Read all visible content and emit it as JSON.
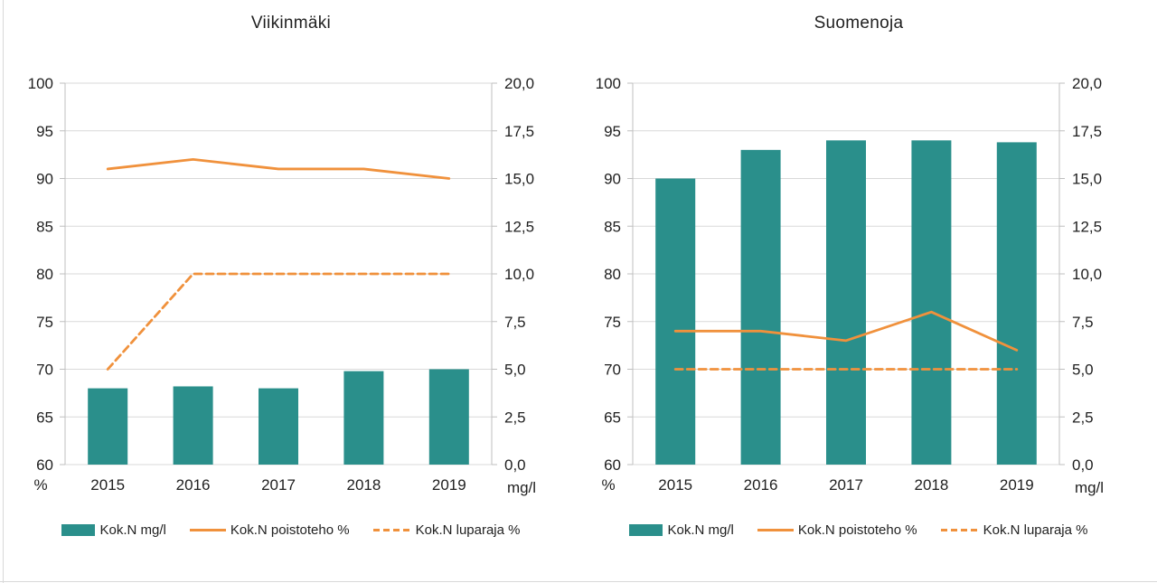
{
  "colors": {
    "bar": "#2a8f8b",
    "line": "#f0913c",
    "grid": "#d9d9d9",
    "axis": "#bfbfbf",
    "text": "#1f1f1f"
  },
  "legend_labels": {
    "bar": "Kok.N mg/l",
    "line": "Kok.N poistoteho %",
    "dash": "Kok.N luparaja %"
  },
  "chart_data": [
    {
      "type": "bar",
      "title": "Viikinmäki",
      "categories": [
        "2015",
        "2016",
        "2017",
        "2018",
        "2019"
      ],
      "series": [
        {
          "name": "Kok.N mg/l",
          "kind": "bar",
          "axis": "right",
          "values": [
            4.0,
            4.1,
            4.0,
            4.9,
            5.0
          ]
        },
        {
          "name": "Kok.N poistoteho %",
          "kind": "line",
          "axis": "left",
          "values": [
            91,
            92,
            91,
            91,
            90
          ]
        },
        {
          "name": "Kok.N luparaja %",
          "kind": "dash",
          "axis": "left",
          "values": [
            70,
            80,
            80,
            80,
            80
          ]
        }
      ],
      "left_axis": {
        "label": "%",
        "min": 60,
        "max": 100,
        "step": 5,
        "ticks": [
          "100",
          "95",
          "90",
          "85",
          "80",
          "75",
          "70",
          "65",
          "60"
        ]
      },
      "right_axis": {
        "label": "mg/l",
        "min": 0,
        "max": 20,
        "step": 2.5,
        "ticks": [
          "20,0",
          "17,5",
          "15,0",
          "12,5",
          "10,0",
          "7,5",
          "5,0",
          "2,5",
          "0,0"
        ]
      },
      "grid": true,
      "legend_position": "bottom"
    },
    {
      "type": "bar",
      "title": "Suomenoja",
      "categories": [
        "2015",
        "2016",
        "2017",
        "2018",
        "2019"
      ],
      "series": [
        {
          "name": "Kok.N mg/l",
          "kind": "bar",
          "axis": "right",
          "values": [
            15.0,
            16.5,
            17.0,
            17.0,
            16.9
          ]
        },
        {
          "name": "Kok.N poistoteho %",
          "kind": "line",
          "axis": "left",
          "values": [
            74,
            74,
            73,
            76,
            72
          ]
        },
        {
          "name": "Kok.N luparaja %",
          "kind": "dash",
          "axis": "left",
          "values": [
            70,
            70,
            70,
            70,
            70
          ]
        }
      ],
      "left_axis": {
        "label": "%",
        "min": 60,
        "max": 100,
        "step": 5,
        "ticks": [
          "100",
          "95",
          "90",
          "85",
          "80",
          "75",
          "70",
          "65",
          "60"
        ]
      },
      "right_axis": {
        "label": "mg/l",
        "min": 0,
        "max": 20,
        "step": 2.5,
        "ticks": [
          "20,0",
          "17,5",
          "15,0",
          "12,5",
          "10,0",
          "7,5",
          "5,0",
          "2,5",
          "0,0"
        ]
      },
      "grid": true,
      "legend_position": "bottom"
    }
  ]
}
